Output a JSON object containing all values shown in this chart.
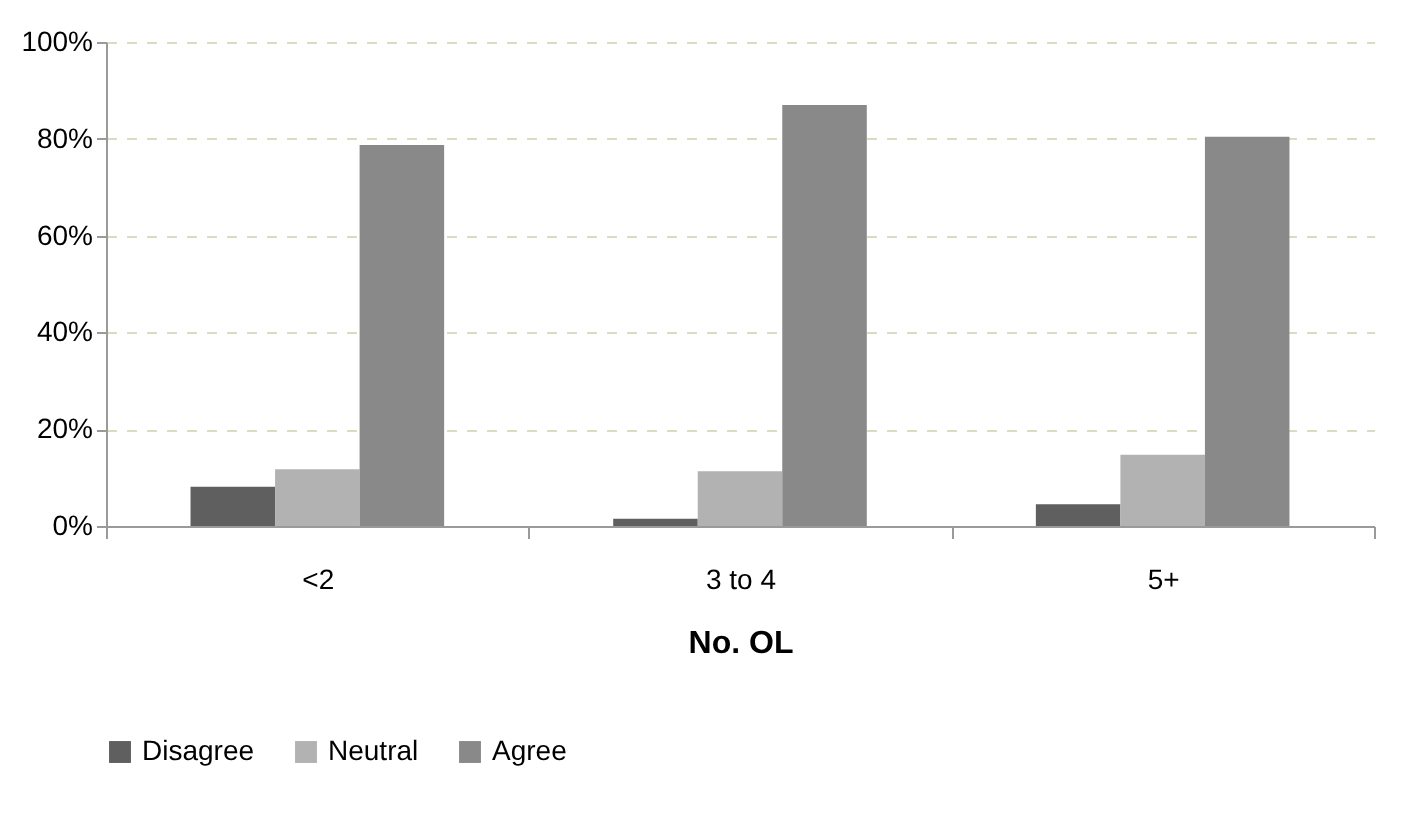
{
  "chart_data": {
    "type": "bar",
    "xlabel": "No. OL",
    "categories": [
      "<2",
      "3 to 4",
      "5+"
    ],
    "series": [
      {
        "name": "Disagree",
        "color": "#5f5f5f",
        "values": [
          8.1,
          1.5,
          4.5
        ]
      },
      {
        "name": "Neutral",
        "color": "#b2b2b2",
        "values": [
          11.7,
          11.3,
          14.7
        ]
      },
      {
        "name": "Agree",
        "color": "#898989",
        "values": [
          78.7,
          87.0,
          80.4
        ]
      }
    ],
    "ylim": [
      0,
      100
    ],
    "yticks": [
      {
        "value": 0,
        "label": "0%"
      },
      {
        "value": 20,
        "label": "20%"
      },
      {
        "value": 40,
        "label": "40%"
      },
      {
        "value": 60,
        "label": "60%"
      },
      {
        "value": 80,
        "label": "80%"
      },
      {
        "value": 100,
        "label": "100%"
      }
    ],
    "grid": "y",
    "legend": "bottom"
  }
}
